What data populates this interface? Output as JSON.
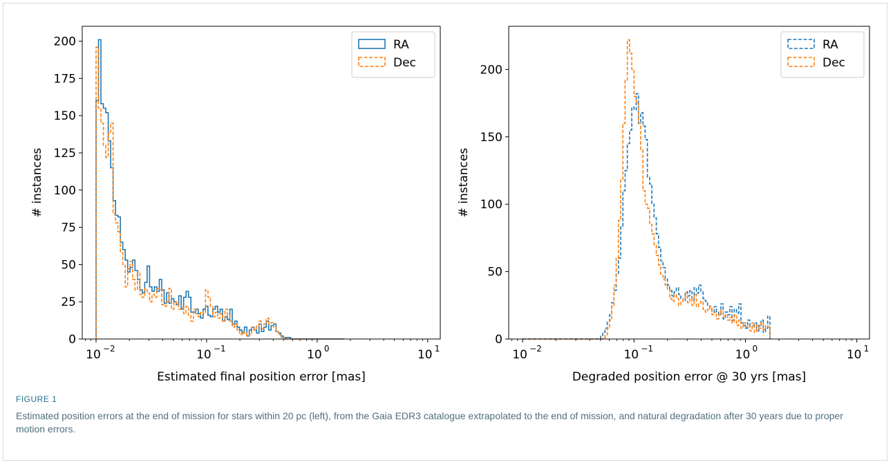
{
  "figure": {
    "label": "FIGURE 1",
    "caption": "Estimated position errors at the end of mission for stars within 20 pc (left), from the Gaia EDR3 catalogue extrapolated to the end of mission, and natural degradation after 30 years due to proper motion errors."
  },
  "colors": {
    "ra": "#1f77b4",
    "dec": "#ff7f0e"
  },
  "chart_data": [
    {
      "type": "histogram",
      "xlabel": "Estimated final position error [mas]",
      "ylabel": "# instances",
      "xscale": "log",
      "xlim": [
        0.0075,
        13
      ],
      "ylim": [
        0,
        210
      ],
      "xticks": [
        {
          "base": "10",
          "exp": "−2",
          "value": 0.01
        },
        {
          "base": "10",
          "exp": "−1",
          "value": 0.1
        },
        {
          "base": "10",
          "exp": "0",
          "value": 1
        },
        {
          "base": "10",
          "exp": "1",
          "value": 10
        }
      ],
      "yticks": [
        0,
        25,
        50,
        75,
        100,
        125,
        150,
        175,
        200
      ],
      "legend": "upper right",
      "bins_start": 0.01,
      "bins_log_width": 0.022,
      "series": [
        {
          "name": "RA",
          "style": "solid",
          "values": [
            160,
            201,
            158,
            155,
            152,
            133,
            115,
            93,
            83,
            82,
            65,
            60,
            53,
            45,
            48,
            53,
            46,
            40,
            33,
            31,
            38,
            49,
            35,
            32,
            35,
            32,
            40,
            33,
            24,
            31,
            24,
            27,
            25,
            23,
            29,
            20,
            28,
            32,
            28,
            18,
            18,
            20,
            17,
            14,
            20,
            22,
            16,
            15,
            20,
            22,
            18,
            20,
            12,
            15,
            13,
            20,
            10,
            12,
            8,
            6,
            4,
            8,
            2,
            6,
            8,
            6,
            4,
            10,
            5,
            8,
            12,
            6,
            9,
            10,
            5,
            4,
            2,
            1,
            1,
            1,
            0,
            0,
            0,
            0,
            0,
            0,
            0,
            0,
            0,
            0,
            0,
            0,
            0,
            0,
            0,
            0,
            0,
            0,
            0,
            0,
            0,
            0
          ]
        },
        {
          "name": "Dec",
          "style": "dashed",
          "values": [
            196,
            155,
            145,
            130,
            122,
            138,
            145,
            84,
            78,
            72,
            58,
            50,
            35,
            47,
            52,
            40,
            33,
            45,
            30,
            28,
            34,
            31,
            25,
            30,
            28,
            34,
            33,
            23,
            22,
            25,
            34,
            20,
            25,
            24,
            20,
            21,
            17,
            22,
            16,
            12,
            20,
            17,
            15,
            18,
            17,
            33,
            28,
            22,
            15,
            18,
            14,
            17,
            12,
            20,
            16,
            12,
            8,
            10,
            6,
            3,
            5,
            4,
            2,
            3,
            8,
            6,
            9,
            12,
            7,
            10,
            14,
            10,
            11,
            8,
            5,
            3,
            1,
            1,
            0,
            0,
            0,
            0,
            0,
            0,
            0,
            0,
            0,
            0,
            0,
            0,
            0,
            0,
            0,
            0,
            0,
            0,
            0,
            0,
            0,
            0,
            0,
            0
          ]
        }
      ]
    },
    {
      "type": "histogram",
      "xlabel": "Degraded position error @ 30 yrs [mas]",
      "ylabel": "# instances",
      "xscale": "log",
      "xlim": [
        0.0075,
        13
      ],
      "ylim": [
        0,
        232
      ],
      "xticks": [
        {
          "base": "10",
          "exp": "−2",
          "value": 0.01
        },
        {
          "base": "10",
          "exp": "−1",
          "value": 0.1
        },
        {
          "base": "10",
          "exp": "0",
          "value": 1
        },
        {
          "base": "10",
          "exp": "1",
          "value": 10
        }
      ],
      "yticks": [
        0,
        50,
        100,
        150,
        200
      ],
      "legend": "upper right",
      "bins_start": 0.01,
      "bins_log_width": 0.02,
      "series": [
        {
          "name": "RA",
          "style": "dashed",
          "values": [
            0,
            0,
            0,
            0,
            0,
            0,
            0,
            0,
            0,
            0,
            0,
            0,
            0,
            0,
            0,
            0,
            0,
            0,
            0,
            0,
            0,
            0,
            0,
            0,
            0,
            0,
            0,
            0,
            0,
            0,
            0,
            0,
            0,
            0,
            0,
            2,
            5,
            8,
            13,
            18,
            27,
            36,
            48,
            60,
            83,
            110,
            125,
            145,
            155,
            172,
            170,
            182,
            160,
            168,
            158,
            148,
            120,
            115,
            100,
            90,
            78,
            68,
            58,
            53,
            45,
            40,
            36,
            32,
            35,
            38,
            33,
            30,
            28,
            35,
            32,
            36,
            29,
            38,
            34,
            40,
            35,
            30,
            28,
            25,
            22,
            20,
            24,
            20,
            18,
            26,
            15,
            20,
            18,
            24,
            14,
            22,
            19,
            26,
            12,
            10,
            8,
            14,
            10,
            10,
            12,
            6,
            10,
            14,
            5,
            8,
            17
          ]
        },
        {
          "name": "Dec",
          "style": "dashed",
          "values": [
            0,
            0,
            0,
            0,
            0,
            0,
            0,
            0,
            0,
            0,
            0,
            0,
            0,
            0,
            0,
            0,
            0,
            0,
            0,
            0,
            0,
            0,
            0,
            0,
            0,
            0,
            0,
            0,
            0,
            0,
            0,
            0,
            0,
            0,
            0,
            0,
            1,
            3,
            8,
            14,
            25,
            40,
            60,
            88,
            118,
            160,
            192,
            222,
            212,
            200,
            180,
            175,
            160,
            140,
            110,
            100,
            97,
            85,
            78,
            70,
            62,
            55,
            48,
            44,
            40,
            37,
            30,
            28,
            33,
            30,
            25,
            28,
            30,
            34,
            27,
            30,
            25,
            33,
            24,
            26,
            28,
            22,
            20,
            22,
            24,
            18,
            20,
            15,
            18,
            21,
            17,
            18,
            14,
            16,
            12,
            18,
            10,
            14,
            8,
            12,
            9,
            10,
            6,
            12,
            5,
            10,
            8,
            12,
            7,
            10,
            9
          ]
        }
      ]
    }
  ]
}
